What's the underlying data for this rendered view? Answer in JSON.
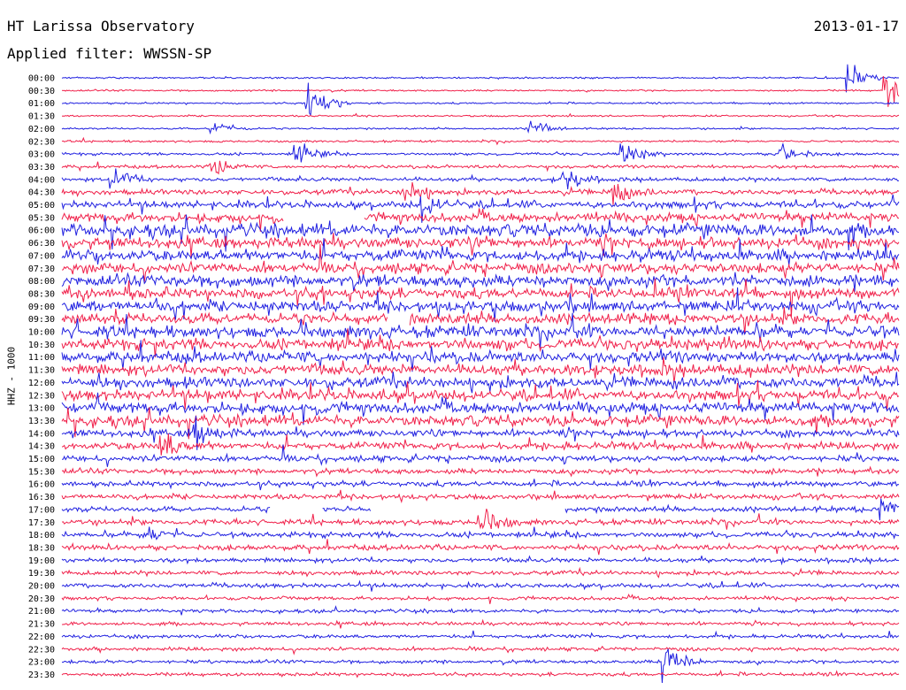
{
  "header": {
    "title": "HT Larissa Observatory",
    "date": "2013-01-17",
    "filter": "Applied filter: WWSSN-SP"
  },
  "chart_data": {
    "type": "line",
    "subtype": "helicorder",
    "ylabel": "HHZ - 1000",
    "colors": {
      "a": "#2020e0",
      "b": "#f0204a"
    },
    "ticks": [
      "00:00",
      "00:30",
      "01:00",
      "01:30",
      "02:00",
      "02:30",
      "03:00",
      "03:30",
      "04:00",
      "04:30",
      "05:00",
      "05:30",
      "06:00",
      "06:30",
      "07:00",
      "07:30",
      "08:00",
      "08:30",
      "09:00",
      "09:30",
      "10:00",
      "10:30",
      "11:00",
      "11:30",
      "12:00",
      "12:30",
      "13:00",
      "13:30",
      "14:00",
      "14:30",
      "15:00",
      "15:30",
      "16:00",
      "16:30",
      "17:00",
      "17:30",
      "18:00",
      "18:30",
      "19:00",
      "19:30",
      "20:00",
      "20:30",
      "21:00",
      "21:30",
      "22:00",
      "22:30",
      "23:00",
      "23:30"
    ],
    "noise_level": [
      1,
      1,
      1,
      1,
      1,
      1.2,
      1.5,
      1.8,
      2.2,
      3,
      4,
      5,
      7,
      6,
      6,
      6,
      6.5,
      6,
      6.5,
      6,
      6.5,
      6,
      6,
      6,
      6,
      6,
      6,
      6,
      4,
      4,
      3.5,
      3,
      3,
      3,
      3,
      3,
      3,
      3,
      2.5,
      2.5,
      2.5,
      2,
      2,
      2,
      2,
      2,
      2,
      2
    ],
    "events": [
      {
        "row": 0,
        "t": 0.94,
        "amp": 14
      },
      {
        "row": 1,
        "t": 0.985,
        "amp": 22
      },
      {
        "row": 2,
        "t": 0.295,
        "amp": 24
      },
      {
        "row": 4,
        "t": 0.18,
        "amp": 10
      },
      {
        "row": 4,
        "t": 0.56,
        "amp": 10
      },
      {
        "row": 6,
        "t": 0.28,
        "amp": 12
      },
      {
        "row": 6,
        "t": 0.67,
        "amp": 14
      },
      {
        "row": 6,
        "t": 0.86,
        "amp": 12
      },
      {
        "row": 7,
        "t": 0.18,
        "amp": 10
      },
      {
        "row": 8,
        "t": 0.06,
        "amp": 14
      },
      {
        "row": 8,
        "t": 0.6,
        "amp": 12
      },
      {
        "row": 9,
        "t": 0.41,
        "amp": 14
      },
      {
        "row": 9,
        "t": 0.66,
        "amp": 18
      },
      {
        "row": 10,
        "t": 0.43,
        "amp": 12
      },
      {
        "row": 29,
        "t": 0.12,
        "amp": 16
      },
      {
        "row": 28,
        "t": 0.16,
        "amp": 18
      },
      {
        "row": 34,
        "t": 0.98,
        "amp": 16
      },
      {
        "row": 35,
        "t": 0.5,
        "amp": 20
      },
      {
        "row": 36,
        "t": 0.1,
        "amp": 10
      },
      {
        "row": 46,
        "t": 0.72,
        "amp": 24
      }
    ],
    "gaps": [
      {
        "row": 11,
        "t0": 0.265,
        "t1": 0.36
      },
      {
        "row": 19,
        "t0": 0.39,
        "t1": 0.415
      },
      {
        "row": 34,
        "t0": 0.25,
        "t1": 0.31
      },
      {
        "row": 34,
        "t0": 0.37,
        "t1": 0.6
      }
    ]
  }
}
